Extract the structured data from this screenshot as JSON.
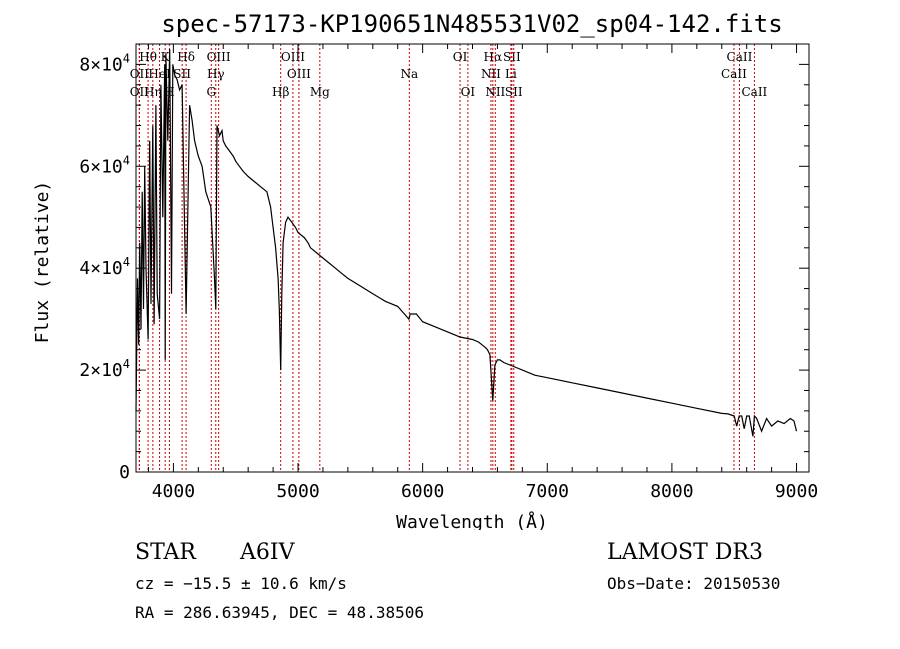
{
  "chart_data": {
    "type": "line",
    "title": "spec-57173-KP190651N485531V02_sp04-142.fits",
    "xlabel": "Wavelength (Å)",
    "ylabel": "Flux (relative)",
    "xlim": [
      3700,
      9100
    ],
    "ylim": [
      0,
      84000
    ],
    "xticks": [
      4000,
      5000,
      6000,
      7000,
      8000,
      9000
    ],
    "xtick_labels": [
      "4000",
      "5000",
      "6000",
      "7000",
      "8000",
      "9000"
    ],
    "yticks": [
      0,
      20000,
      40000,
      60000,
      80000
    ],
    "ytick_labels": [
      "0",
      "2×10⁴",
      "4×10⁴",
      "6×10⁴",
      "8×10⁴"
    ],
    "grid": false,
    "series": [
      {
        "name": "flux",
        "color": "#000000",
        "x": [
          3700,
          3712,
          3722,
          3730,
          3740,
          3750,
          3760,
          3770,
          3780,
          3797,
          3810,
          3820,
          3835,
          3845,
          3860,
          3870,
          3889,
          3900,
          3915,
          3930,
          3934,
          3940,
          3955,
          3970,
          3985,
          3995,
          4010,
          4030,
          4050,
          4070,
          4102,
          4130,
          4150,
          4170,
          4200,
          4230,
          4260,
          4300,
          4330,
          4340,
          4350,
          4370,
          4390,
          4400,
          4420,
          4450,
          4480,
          4500,
          4530,
          4560,
          4600,
          4650,
          4700,
          4750,
          4780,
          4800,
          4820,
          4840,
          4850,
          4861,
          4870,
          4880,
          4900,
          4920,
          4950,
          4980,
          5000,
          5050,
          5080,
          5100,
          5150,
          5200,
          5250,
          5300,
          5350,
          5400,
          5500,
          5600,
          5700,
          5800,
          5890,
          5900,
          5950,
          6000,
          6100,
          6200,
          6300,
          6400,
          6450,
          6500,
          6520,
          6540,
          6563,
          6580,
          6600,
          6620,
          6650,
          6700,
          6750,
          6800,
          6900,
          7000,
          7200,
          7400,
          7600,
          7800,
          8000,
          8200,
          8400,
          8450,
          8500,
          8520,
          8540,
          8560,
          8580,
          8600,
          8620,
          8650,
          8662,
          8680,
          8720,
          8760,
          8800,
          8850,
          8900,
          8950,
          8980,
          9000
        ],
        "y": [
          12000,
          38000,
          25000,
          45000,
          28000,
          55000,
          32000,
          60000,
          40000,
          26000,
          65000,
          33000,
          68000,
          29000,
          72000,
          35000,
          30000,
          76000,
          50000,
          80000,
          22000,
          82000,
          65000,
          83000,
          35000,
          80000,
          78000,
          77000,
          75000,
          76000,
          31000,
          72000,
          69000,
          65000,
          62000,
          60000,
          55000,
          52000,
          38000,
          32000,
          68000,
          66000,
          67000,
          65000,
          64000,
          63000,
          62000,
          61000,
          60000,
          59000,
          58000,
          57000,
          56000,
          55000,
          52000,
          48000,
          44000,
          38000,
          32000,
          20000,
          35000,
          45000,
          49000,
          50000,
          49000,
          48000,
          47000,
          46000,
          45000,
          44000,
          43000,
          42000,
          41000,
          40000,
          39000,
          38000,
          36500,
          35000,
          33500,
          32500,
          30000,
          31000,
          31000,
          29500,
          28500,
          27500,
          26500,
          26000,
          25500,
          24500,
          24000,
          23000,
          14000,
          21000,
          22000,
          22000,
          21500,
          21000,
          20500,
          20000,
          19000,
          18500,
          17500,
          16500,
          15500,
          14500,
          13500,
          12500,
          11500,
          11400,
          11000,
          9000,
          11000,
          11000,
          8500,
          11000,
          11000,
          7000,
          11000,
          10500,
          8000,
          10500,
          9000,
          10000,
          9500,
          10500,
          10000,
          8000
        ]
      }
    ],
    "line_markers": [
      {
        "label": "Hθ",
        "wavelength": 3797,
        "row": 1
      },
      {
        "label": "K",
        "wavelength": 3934,
        "row": 1
      },
      {
        "label": "Hδ",
        "wavelength": 4102,
        "row": 1
      },
      {
        "label": "OIII",
        "wavelength": 4363,
        "row": 1
      },
      {
        "label": "OIII",
        "wavelength": 4959,
        "row": 1
      },
      {
        "label": "OI",
        "wavelength": 6300,
        "row": 1
      },
      {
        "label": "Hα",
        "wavelength": 6563,
        "row": 1
      },
      {
        "label": "SII",
        "wavelength": 6716,
        "row": 1
      },
      {
        "label": "CaII",
        "wavelength": 8542,
        "row": 1
      },
      {
        "label": "OII",
        "wavelength": 3727,
        "row": 2
      },
      {
        "label": "HeI",
        "wavelength": 3889,
        "row": 2
      },
      {
        "label": "SII",
        "wavelength": 4070,
        "row": 2
      },
      {
        "label": "Hγ",
        "wavelength": 4340,
        "row": 2
      },
      {
        "label": "OIII",
        "wavelength": 5007,
        "row": 2
      },
      {
        "label": "NII",
        "wavelength": 6548,
        "row": 2
      },
      {
        "label": "Li",
        "wavelength": 6708,
        "row": 2
      },
      {
        "label": "CaII",
        "wavelength": 8498,
        "row": 2
      },
      {
        "label": "Na",
        "wavelength": 5893,
        "row": 2
      },
      {
        "label": "OII",
        "wavelength": 3727,
        "row": 3
      },
      {
        "label": "Hη",
        "wavelength": 3835,
        "row": 3
      },
      {
        "label": "H",
        "wavelength": 3968,
        "row": 3
      },
      {
        "label": "G",
        "wavelength": 4304,
        "row": 3
      },
      {
        "label": "Hβ",
        "wavelength": 4861,
        "row": 3
      },
      {
        "label": "Mg",
        "wavelength": 5175,
        "row": 3
      },
      {
        "label": "OI",
        "wavelength": 6363,
        "row": 3
      },
      {
        "label": "NII",
        "wavelength": 6583,
        "row": 3
      },
      {
        "label": "SII",
        "wavelength": 6731,
        "row": 3
      },
      {
        "label": "CaII",
        "wavelength": 8662,
        "row": 3
      }
    ],
    "marker_color": "#cc0000"
  },
  "info": {
    "class": "STAR",
    "subclass": "A6IV",
    "survey": "LAMOST DR3",
    "redshift": "cz = −15.5 ± 10.6 km/s",
    "obs_date": "Obs−Date: 20150530",
    "coords": "RA = 286.63945, DEC =  48.38506"
  }
}
